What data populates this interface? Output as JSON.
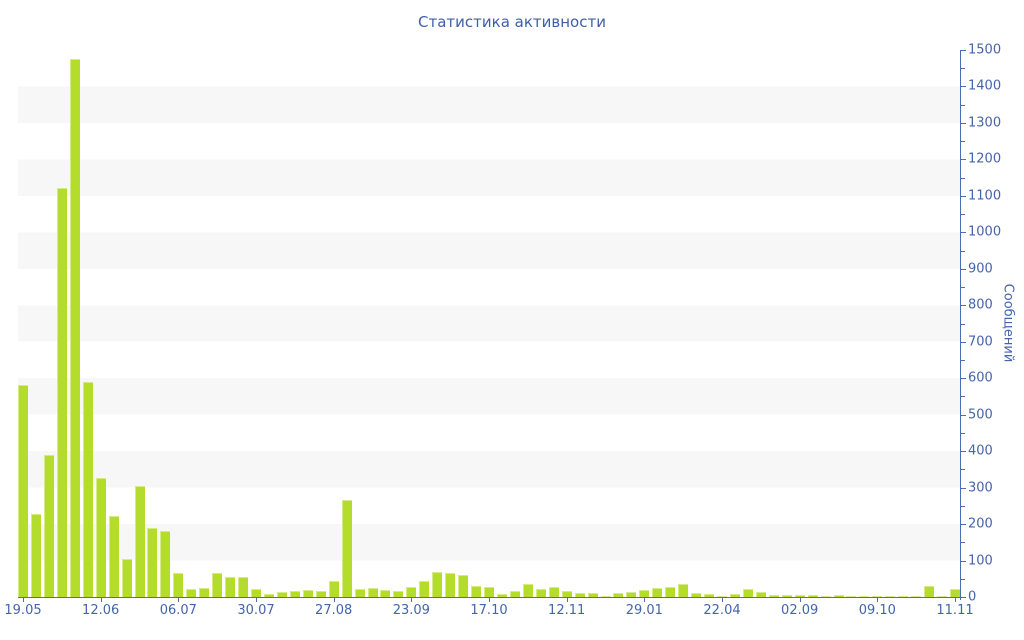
{
  "title": "Статистика активности",
  "colors": {
    "bar_fill": "#b3dc2c",
    "bar_edge": "#d7eb85",
    "axis_line": "#4a6db3",
    "text": "#4464ab",
    "band_gray": "#f7f7f7",
    "background": "#ffffff"
  },
  "y_axis": {
    "label": "Сообщений",
    "min": 0,
    "max": 1500,
    "major_step": 100,
    "minor_step": 50
  },
  "x_axis": {
    "tick_labels": [
      "19.05",
      "12.06",
      "06.07",
      "30.07",
      "27.08",
      "23.09",
      "17.10",
      "12.11",
      "29.01",
      "22.04",
      "02.09",
      "09.10",
      "11.11"
    ],
    "tick_bar_indices": [
      0,
      6,
      12,
      18,
      24,
      30,
      36,
      42,
      48,
      54,
      60,
      66,
      72
    ]
  },
  "chart_data": {
    "type": "bar",
    "title": "Статистика активности",
    "xlabel": "",
    "ylabel": "Сообщений",
    "ylim": [
      0,
      1500
    ],
    "grid": "alternating horizontal gray bands every 100 units",
    "legend": "none",
    "bar_count": 73,
    "x_tick_labels": [
      "19.05",
      "12.06",
      "06.07",
      "30.07",
      "27.08",
      "23.09",
      "17.10",
      "12.11",
      "29.01",
      "22.04",
      "02.09",
      "09.10",
      "11.11"
    ],
    "x_tick_bar_indices": [
      0,
      6,
      12,
      18,
      24,
      30,
      36,
      42,
      48,
      54,
      60,
      66,
      72
    ],
    "values": [
      580,
      228,
      390,
      1122,
      1475,
      590,
      326,
      222,
      104,
      305,
      190,
      182,
      67,
      22,
      24,
      65,
      54,
      54,
      21,
      7,
      13,
      16,
      19,
      17,
      45,
      265,
      22,
      25,
      19,
      17,
      27,
      45,
      68,
      66,
      59,
      30,
      28,
      8,
      17,
      36,
      23,
      27,
      17,
      12,
      10,
      4,
      10,
      14,
      20,
      25,
      27,
      35,
      10,
      8,
      4,
      8,
      22,
      14,
      5,
      6,
      5,
      5,
      4,
      5,
      4,
      3,
      3,
      3,
      3,
      3,
      30,
      3,
      22
    ]
  }
}
